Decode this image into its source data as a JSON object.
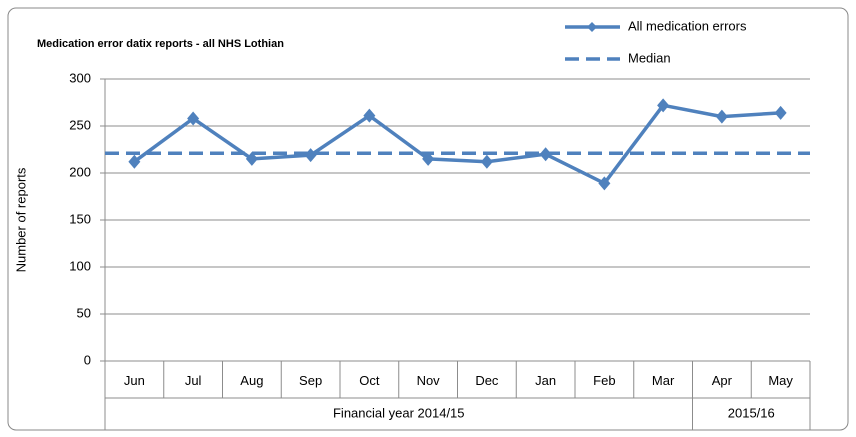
{
  "chart_data": {
    "type": "line",
    "title": "Medication error datix reports - all NHS Lothian",
    "y_label": "Number of reports",
    "categories": [
      "Jun",
      "Jul",
      "Aug",
      "Sep",
      "Oct",
      "Nov",
      "Dec",
      "Jan",
      "Feb",
      "Mar",
      "Apr",
      "May"
    ],
    "category_groups": [
      {
        "label": "Financial year 2014/15",
        "count": 10
      },
      {
        "label": "2015/16",
        "count": 2
      }
    ],
    "series": [
      {
        "name": "All medication errors",
        "color": "#4f81bd",
        "dashed": false,
        "markers": true,
        "values": [
          212,
          258,
          215,
          219,
          261,
          215,
          212,
          220,
          189,
          272,
          260,
          264
        ]
      },
      {
        "name": "Median",
        "color": "#4f81bd",
        "dashed": true,
        "markers": false,
        "values": [
          221,
          221,
          221,
          221,
          221,
          221,
          221,
          221,
          221,
          221,
          221,
          221
        ]
      }
    ],
    "ylim": [
      0,
      300
    ],
    "yticks": [
      0,
      50,
      100,
      150,
      200,
      250,
      300
    ],
    "grid": true,
    "legend": "top-right"
  }
}
